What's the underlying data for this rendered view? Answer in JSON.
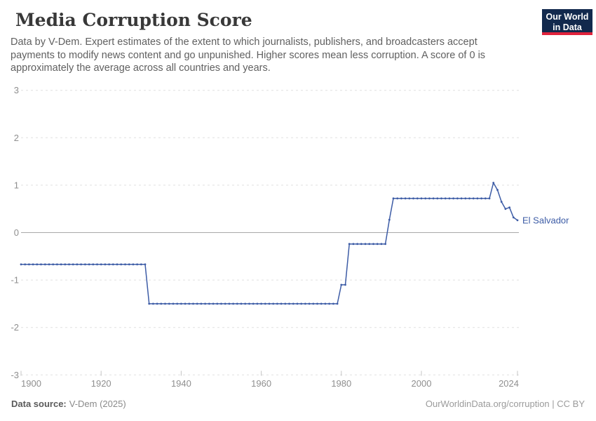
{
  "header": {
    "title": "Media Corruption Score",
    "subtitle_lines": [
      "Data by V-Dem. Expert estimates of the extent to which journalists, publishers, and broadcasters accept",
      "payments to modify news content and go unpunished. Higher scores mean less corruption. A score of 0 is",
      "approximately the average across all countries and years."
    ],
    "logo": {
      "line1": "Our World",
      "line2": "in Data",
      "bg_color": "#12294d",
      "accent_color": "#e0233c",
      "text_color": "#ffffff"
    }
  },
  "chart_data": {
    "type": "line",
    "title": "Media Corruption Score",
    "xlabel": "",
    "ylabel": "",
    "xlim": [
      1900,
      2024
    ],
    "ylim": [
      -3,
      3
    ],
    "xticks": [
      1900,
      1920,
      1940,
      1960,
      1980,
      2000,
      2024
    ],
    "yticks": [
      -3,
      -2,
      -1,
      0,
      1,
      2,
      3
    ],
    "grid": "horizontal dashed gridlines, solid line at zero",
    "legend": "entity label at right end of line",
    "entity_label": "El Salvador",
    "colors": {
      "line": "#3d5ca6",
      "grid": "#e0e0e0",
      "zero_line": "#a8a8a8",
      "axis_text": "#8f8f8f",
      "tick": "#c4c4c4"
    },
    "series": [
      {
        "name": "El Salvador",
        "points": [
          [
            1900,
            -0.67
          ],
          [
            1901,
            -0.67
          ],
          [
            1902,
            -0.67
          ],
          [
            1903,
            -0.67
          ],
          [
            1904,
            -0.67
          ],
          [
            1905,
            -0.67
          ],
          [
            1906,
            -0.67
          ],
          [
            1907,
            -0.67
          ],
          [
            1908,
            -0.67
          ],
          [
            1909,
            -0.67
          ],
          [
            1910,
            -0.67
          ],
          [
            1911,
            -0.67
          ],
          [
            1912,
            -0.67
          ],
          [
            1913,
            -0.67
          ],
          [
            1914,
            -0.67
          ],
          [
            1915,
            -0.67
          ],
          [
            1916,
            -0.67
          ],
          [
            1917,
            -0.67
          ],
          [
            1918,
            -0.67
          ],
          [
            1919,
            -0.67
          ],
          [
            1920,
            -0.67
          ],
          [
            1921,
            -0.67
          ],
          [
            1922,
            -0.67
          ],
          [
            1923,
            -0.67
          ],
          [
            1924,
            -0.67
          ],
          [
            1925,
            -0.67
          ],
          [
            1926,
            -0.67
          ],
          [
            1927,
            -0.67
          ],
          [
            1928,
            -0.67
          ],
          [
            1929,
            -0.67
          ],
          [
            1930,
            -0.67
          ],
          [
            1931,
            -0.67
          ],
          [
            1932,
            -1.5
          ],
          [
            1933,
            -1.5
          ],
          [
            1934,
            -1.5
          ],
          [
            1935,
            -1.5
          ],
          [
            1936,
            -1.5
          ],
          [
            1937,
            -1.5
          ],
          [
            1938,
            -1.5
          ],
          [
            1939,
            -1.5
          ],
          [
            1940,
            -1.5
          ],
          [
            1941,
            -1.5
          ],
          [
            1942,
            -1.5
          ],
          [
            1943,
            -1.5
          ],
          [
            1944,
            -1.5
          ],
          [
            1945,
            -1.5
          ],
          [
            1946,
            -1.5
          ],
          [
            1947,
            -1.5
          ],
          [
            1948,
            -1.5
          ],
          [
            1949,
            -1.5
          ],
          [
            1950,
            -1.5
          ],
          [
            1951,
            -1.5
          ],
          [
            1952,
            -1.5
          ],
          [
            1953,
            -1.5
          ],
          [
            1954,
            -1.5
          ],
          [
            1955,
            -1.5
          ],
          [
            1956,
            -1.5
          ],
          [
            1957,
            -1.5
          ],
          [
            1958,
            -1.5
          ],
          [
            1959,
            -1.5
          ],
          [
            1960,
            -1.5
          ],
          [
            1961,
            -1.5
          ],
          [
            1962,
            -1.5
          ],
          [
            1963,
            -1.5
          ],
          [
            1964,
            -1.5
          ],
          [
            1965,
            -1.5
          ],
          [
            1966,
            -1.5
          ],
          [
            1967,
            -1.5
          ],
          [
            1968,
            -1.5
          ],
          [
            1969,
            -1.5
          ],
          [
            1970,
            -1.5
          ],
          [
            1971,
            -1.5
          ],
          [
            1972,
            -1.5
          ],
          [
            1973,
            -1.5
          ],
          [
            1974,
            -1.5
          ],
          [
            1975,
            -1.5
          ],
          [
            1976,
            -1.5
          ],
          [
            1977,
            -1.5
          ],
          [
            1978,
            -1.5
          ],
          [
            1979,
            -1.5
          ],
          [
            1980,
            -1.1
          ],
          [
            1981,
            -1.1
          ],
          [
            1982,
            -0.24
          ],
          [
            1983,
            -0.24
          ],
          [
            1984,
            -0.24
          ],
          [
            1985,
            -0.24
          ],
          [
            1986,
            -0.24
          ],
          [
            1987,
            -0.24
          ],
          [
            1988,
            -0.24
          ],
          [
            1989,
            -0.24
          ],
          [
            1990,
            -0.24
          ],
          [
            1991,
            -0.24
          ],
          [
            1992,
            0.27
          ],
          [
            1993,
            0.72
          ],
          [
            1994,
            0.72
          ],
          [
            1995,
            0.72
          ],
          [
            1996,
            0.72
          ],
          [
            1997,
            0.72
          ],
          [
            1998,
            0.72
          ],
          [
            1999,
            0.72
          ],
          [
            2000,
            0.72
          ],
          [
            2001,
            0.72
          ],
          [
            2002,
            0.72
          ],
          [
            2003,
            0.72
          ],
          [
            2004,
            0.72
          ],
          [
            2005,
            0.72
          ],
          [
            2006,
            0.72
          ],
          [
            2007,
            0.72
          ],
          [
            2008,
            0.72
          ],
          [
            2009,
            0.72
          ],
          [
            2010,
            0.72
          ],
          [
            2011,
            0.72
          ],
          [
            2012,
            0.72
          ],
          [
            2013,
            0.72
          ],
          [
            2014,
            0.72
          ],
          [
            2015,
            0.72
          ],
          [
            2016,
            0.72
          ],
          [
            2017,
            0.72
          ],
          [
            2018,
            1.05
          ],
          [
            2019,
            0.9
          ],
          [
            2020,
            0.65
          ],
          [
            2021,
            0.5
          ],
          [
            2022,
            0.53
          ],
          [
            2023,
            0.32
          ],
          [
            2024,
            0.26
          ]
        ]
      }
    ]
  },
  "footer": {
    "source_label": "Data source:",
    "source_value": "V-Dem (2025)",
    "attribution": "OurWorldinData.org/corruption | CC BY"
  }
}
